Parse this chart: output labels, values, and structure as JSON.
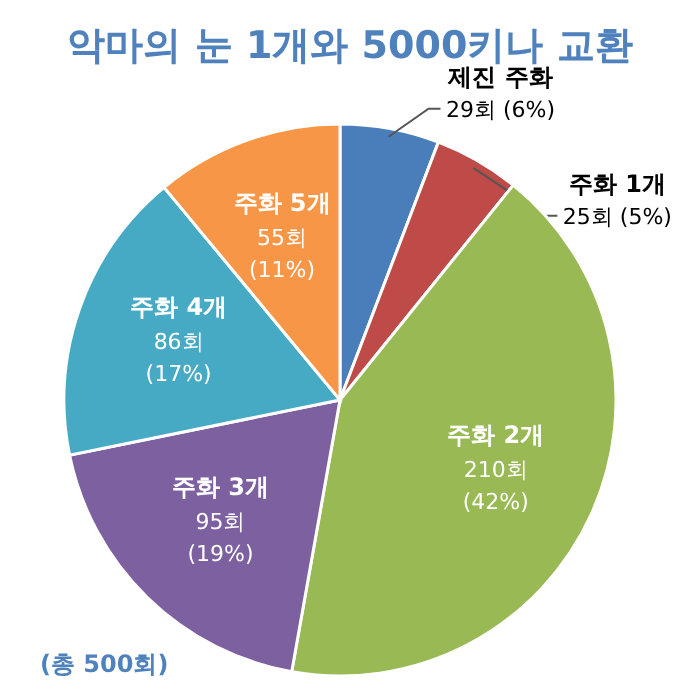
{
  "chart_data": {
    "type": "pie",
    "title": "악마의 눈 1개와 5000키나 교환",
    "categories": [
      "제진 주화",
      "주화 1개",
      "주화 2개",
      "주화 3개",
      "주화 4개",
      "주화 5개"
    ],
    "values": [
      29,
      25,
      210,
      95,
      86,
      55
    ],
    "colors": [
      "#4a7ebb",
      "#be4b48",
      "#98b954",
      "#7d60a0",
      "#46aac5",
      "#f79646"
    ],
    "value_labels": [
      "29회 (6%)",
      "25회 (5%)",
      "210회 (42%)",
      "95회 (19%)",
      "86회 (17%)",
      "55회 (11%)"
    ],
    "annotations": [
      "(총 500회)"
    ]
  }
}
